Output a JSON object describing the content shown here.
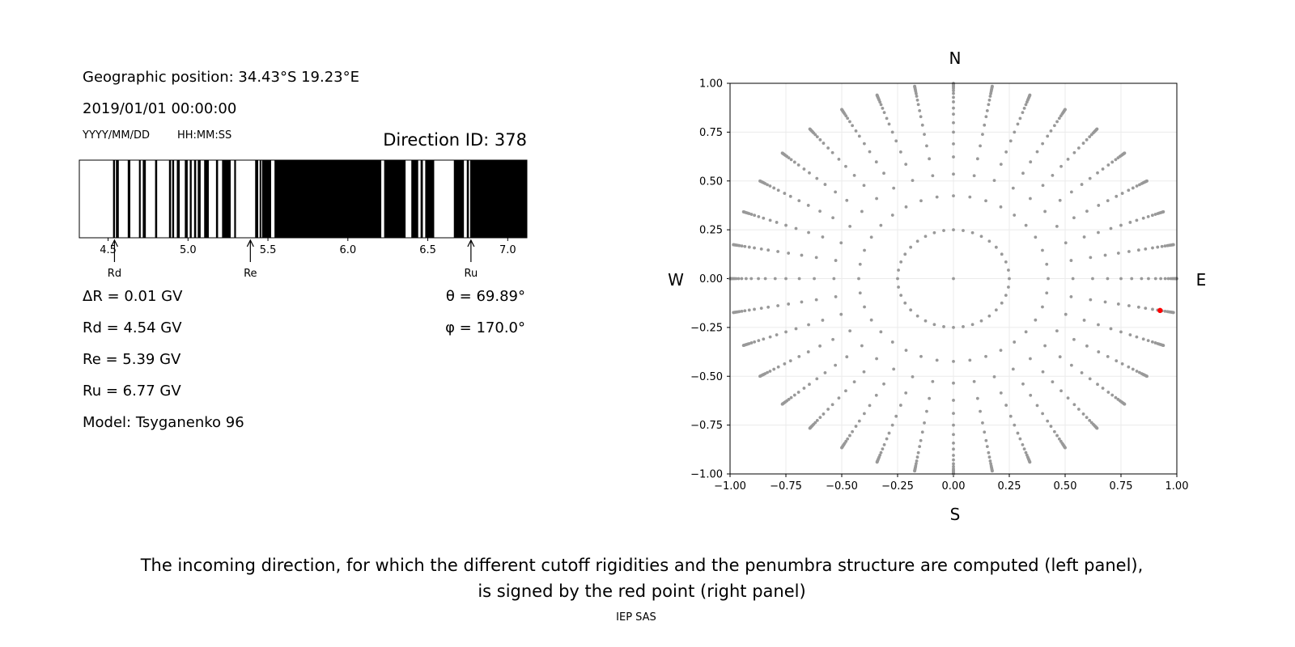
{
  "info": {
    "geo_position": "Geographic position: 34.43°S 19.23°E",
    "datetime": "2019/01/01 00:00:00",
    "date_format": "YYYY/MM/DD",
    "time_format": "HH:MM:SS",
    "direction_id": "Direction ID: 378",
    "delta_r": "ΔR = 0.01 GV",
    "rd": "Rd = 4.54 GV",
    "re": "Re = 5.39 GV",
    "ru": "Ru = 6.77 GV",
    "model": "Model: Tsyganenko 96",
    "theta": "θ = 69.89°",
    "phi": "φ = 170.0°"
  },
  "caption": {
    "line1": "The incoming direction, for which the different cutoff rigidities and the penumbra structure are computed (left panel),",
    "line2": "is signed by the red point (right panel)",
    "credit": "IEP SAS"
  },
  "chart_data": [
    {
      "type": "bar",
      "description_of_marks": "penumbra barcode: black = forbidden rigidities, white = allowed",
      "xlim": [
        4.32,
        7.12
      ],
      "xticks": [
        4.5,
        5.0,
        5.5,
        6.0,
        6.5,
        7.0
      ],
      "xtick_labels": [
        "4.5",
        "5.0",
        "5.5",
        "6.0",
        "6.5",
        "7.0"
      ],
      "colors": {
        "forbidden": "#000000",
        "allowed": "#ffffff"
      },
      "forbidden_intervals": [
        [
          4.531,
          4.543
        ],
        [
          4.549,
          4.567
        ],
        [
          4.623,
          4.639
        ],
        [
          4.693,
          4.704
        ],
        [
          4.717,
          4.736
        ],
        [
          4.794,
          4.807
        ],
        [
          4.881,
          4.894
        ],
        [
          4.901,
          4.913
        ],
        [
          4.93,
          4.948
        ],
        [
          4.98,
          4.998
        ],
        [
          5.011,
          5.023
        ],
        [
          5.038,
          5.051
        ],
        [
          5.061,
          5.079
        ],
        [
          5.101,
          5.13
        ],
        [
          5.175,
          5.188
        ],
        [
          5.213,
          5.267
        ],
        [
          5.289,
          5.3
        ],
        [
          5.42,
          5.439
        ],
        [
          5.448,
          5.458
        ],
        [
          5.463,
          5.52
        ],
        [
          5.541,
          6.209
        ],
        [
          6.227,
          6.361
        ],
        [
          6.397,
          6.44
        ],
        [
          6.455,
          6.469
        ],
        [
          6.484,
          6.54
        ],
        [
          6.663,
          6.726
        ],
        [
          6.744,
          6.757
        ],
        [
          6.765,
          7.12
        ]
      ],
      "annotations": [
        {
          "label": "Rd",
          "x": 4.54
        },
        {
          "label": "Re",
          "x": 5.39
        },
        {
          "label": "Ru",
          "x": 6.77
        }
      ]
    },
    {
      "type": "scatter",
      "xlim": [
        -1.0,
        1.0
      ],
      "ylim": [
        -1.0,
        1.0
      ],
      "grid": true,
      "xticks": [
        "-1.00",
        "-0.75",
        "-0.50",
        "-0.25",
        "0.00",
        "0.25",
        "0.50",
        "0.75",
        "1.00"
      ],
      "yticks": [
        "-1.00",
        "-0.75",
        "-0.50",
        "-0.25",
        "0.00",
        "0.25",
        "0.50",
        "0.75",
        "1.00"
      ],
      "direction_labels": {
        "north": "N",
        "south": "S",
        "west": "W",
        "east": "E"
      },
      "grid_points": {
        "azimuth_step_deg": 10,
        "radii": [
          0.25,
          0.424,
          0.535,
          0.623,
          0.69,
          0.75,
          0.798,
          0.842,
          0.873,
          0.905,
          0.928,
          0.948,
          0.962,
          0.973,
          0.98,
          0.985,
          0.99,
          0.994,
          0.997,
          0.999,
          1.0
        ],
        "center_point": true,
        "color": "#999999"
      },
      "selected_point": {
        "x": 0.925,
        "y": -0.163,
        "color": "#ff0000"
      }
    }
  ]
}
